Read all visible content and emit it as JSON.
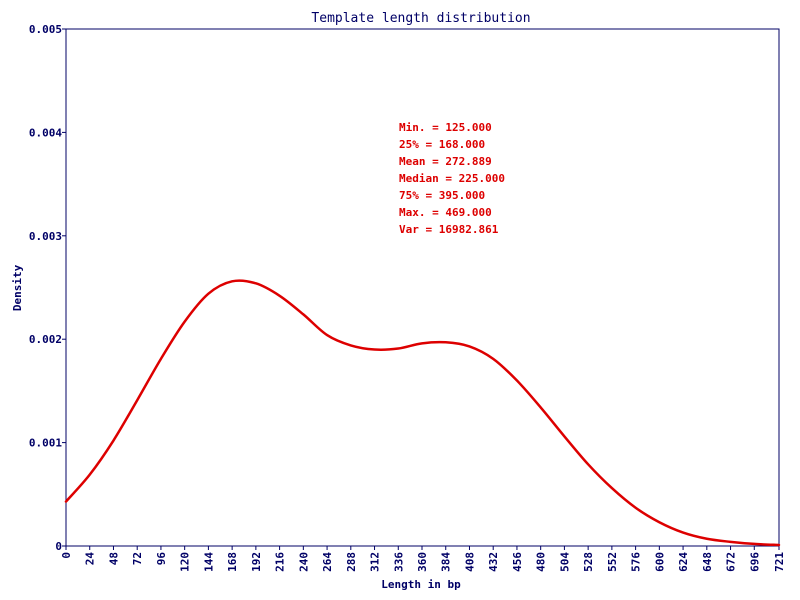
{
  "chart_data": {
    "type": "line",
    "title": "Template length distribution",
    "xlabel": "Length in bp",
    "ylabel": "Density",
    "xlim": [
      0,
      721
    ],
    "ylim": [
      0,
      0.005
    ],
    "x_ticks": [
      "0",
      "24",
      "48",
      "72",
      "96",
      "120",
      "144",
      "168",
      "192",
      "216",
      "240",
      "264",
      "288",
      "312",
      "336",
      "360",
      "384",
      "408",
      "432",
      "456",
      "480",
      "504",
      "528",
      "552",
      "576",
      "600",
      "624",
      "648",
      "672",
      "696",
      "721"
    ],
    "y_ticks": [
      "0",
      "0.001",
      "0.002",
      "0.003",
      "0.004",
      "0.005"
    ],
    "grid": false,
    "series": [
      {
        "color": "#dd0000",
        "x": [
          0,
          24,
          48,
          72,
          96,
          120,
          144,
          168,
          192,
          216,
          240,
          264,
          288,
          312,
          336,
          360,
          384,
          408,
          432,
          456,
          480,
          504,
          528,
          552,
          576,
          600,
          624,
          648,
          672,
          696,
          721
        ],
        "y": [
          0.00043,
          0.00069,
          0.00102,
          0.00141,
          0.00181,
          0.00217,
          0.00244,
          0.00256,
          0.00254,
          0.00242,
          0.00224,
          0.00204,
          0.00194,
          0.0019,
          0.00191,
          0.00196,
          0.00197,
          0.00193,
          0.00181,
          0.0016,
          0.00134,
          0.00106,
          0.00079,
          0.00056,
          0.00037,
          0.00023,
          0.00013,
          7e-05,
          4e-05,
          2e-05,
          1e-05
        ]
      }
    ],
    "annotations": {
      "color": "#dd0000",
      "lines": [
        "Min. = 125.000",
        "25% = 168.000",
        "Mean = 272.889",
        "Median = 225.000",
        "75% = 395.000",
        "Max. = 469.000",
        "Var = 16982.861"
      ]
    }
  }
}
